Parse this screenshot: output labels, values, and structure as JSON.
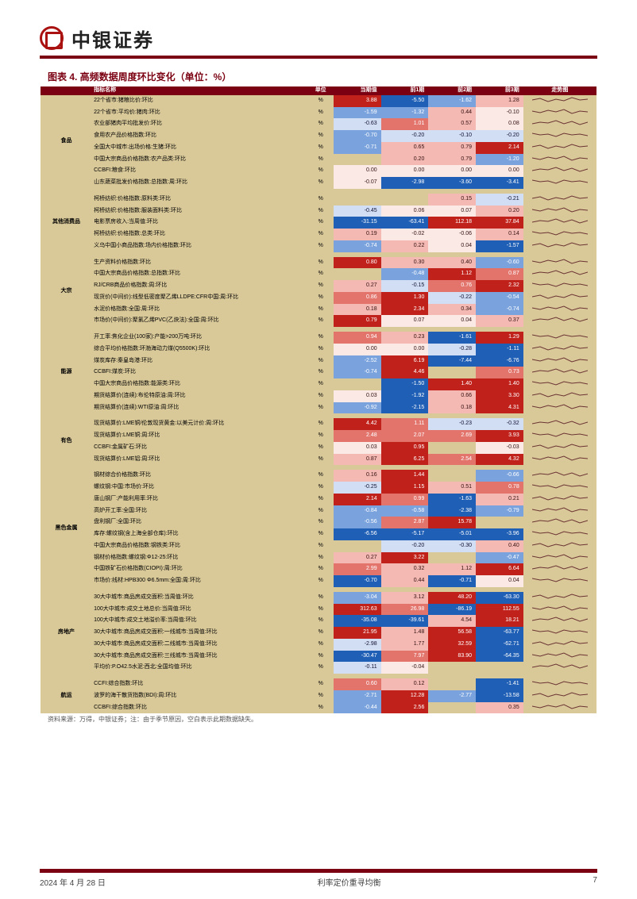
{
  "brand": "中银证券",
  "chart_title": "图表 4. 高频数据周度环比变化（单位：%）",
  "source_note": "资料来源：万得，中银证券；注：由于季节原因，空白表示此期数据缺失。",
  "footer": {
    "date": "2024 年 4 月 28 日",
    "center": "利率定价重寻均衡",
    "page": "7"
  },
  "columns": {
    "name": "指标名称",
    "unit": "单位",
    "v0": "当期值",
    "v1": "前1期",
    "v2": "前2期",
    "v3": "前3期",
    "spark": "走势图"
  },
  "unit_label": "%",
  "color_scale": {
    "neg_deep": "#1f5fb5",
    "neg_mid": "#7aa3de",
    "neg_lt": "#d2def3",
    "neu": "#fbe9e6",
    "pos_lt": "#f5b9b3",
    "pos_mid": "#e2746c",
    "pos_deep": "#c0221b",
    "group_bg": "#d9c999",
    "header_bg": "#7a0012"
  },
  "groups": [
    {
      "cat": "食品",
      "rows": [
        {
          "name": "22个省市:猪粮比价:环比",
          "v": [
            3.88,
            -5.5,
            -1.62,
            1.28
          ],
          "c": [
            "pos-deep",
            "neg-deep",
            "neg-mid",
            "pos-lt"
          ]
        },
        {
          "name": "22个省市:平均价:猪肉:环比",
          "v": [
            -1.59,
            -1.32,
            0.44,
            -0.1
          ],
          "c": [
            "neg-mid",
            "neg-mid",
            "pos-lt",
            "neu"
          ]
        },
        {
          "name": "农业部猪肉平均批发价:环比",
          "v": [
            -0.63,
            1.01,
            0.57,
            0.08
          ],
          "c": [
            "neg-lt",
            "pos-mid",
            "pos-lt",
            "neu"
          ]
        },
        {
          "name": "食用农产品价格指数:环比",
          "v": [
            -0.7,
            -0.2,
            -0.1,
            -0.2
          ],
          "c": [
            "neg-mid",
            "neg-lt",
            "neg-lt",
            "neg-lt"
          ]
        },
        {
          "name": "全国大中城市:出场价格:生猪:环比",
          "v": [
            -0.71,
            0.65,
            0.79,
            2.14
          ],
          "c": [
            "neg-mid",
            "pos-lt",
            "pos-lt",
            "pos-deep"
          ]
        },
        {
          "name": "中国大宗商品价格指数:农产品类:环比",
          "v": [
            null,
            0.2,
            0.79,
            -1.2
          ],
          "c": [
            "blank",
            "pos-lt",
            "pos-lt",
            "neg-mid"
          ]
        },
        {
          "name": "CCBFI:粮食:环比",
          "v": [
            0.0,
            0.0,
            0.0,
            0.0
          ],
          "c": [
            "neu",
            "neu",
            "neu",
            "neu"
          ]
        },
        {
          "name": "山东蔬菜批发价格指数:总指数:周:环比",
          "v": [
            -0.07,
            -2.98,
            -3.6,
            -3.41
          ],
          "c": [
            "neu",
            "neg-deep",
            "neg-deep",
            "neg-deep"
          ]
        }
      ]
    },
    {
      "cat": "其他消费品",
      "rows": [
        {
          "name": "柯桥纺织:价格指数:原料类:环比",
          "v": [
            null,
            null,
            0.15,
            -0.21
          ],
          "c": [
            "blank",
            "blank",
            "pos-lt",
            "neg-lt"
          ]
        },
        {
          "name": "柯桥纺织:价格指数:服装面料类:环比",
          "v": [
            -0.45,
            0.06,
            0.07,
            0.2
          ],
          "c": [
            "neg-lt",
            "neu",
            "neu",
            "pos-lt"
          ]
        },
        {
          "name": "电影票房收入:当周值:环比",
          "v": [
            -31.15,
            -63.41,
            112.18,
            37.84
          ],
          "c": [
            "neg-deep",
            "neg-deep",
            "pos-deep",
            "pos-deep"
          ]
        },
        {
          "name": "柯桥纺织:价格指数:总类:环比",
          "v": [
            0.19,
            -0.02,
            -0.06,
            0.14
          ],
          "c": [
            "pos-lt",
            "neu",
            "neu",
            "pos-lt"
          ]
        },
        {
          "name": "义乌中国小商品指数:场内价格指数:环比",
          "v": [
            -0.74,
            0.22,
            0.04,
            -1.57
          ],
          "c": [
            "neg-mid",
            "pos-lt",
            "neu",
            "neg-deep"
          ]
        }
      ]
    },
    {
      "cat": "大宗",
      "rows": [
        {
          "name": "生产资料价格指数:环比",
          "v": [
            0.8,
            0.3,
            0.4,
            -0.6
          ],
          "c": [
            "pos-deep",
            "pos-lt",
            "pos-lt",
            "neg-mid"
          ]
        },
        {
          "name": "中国大宗商品价格指数:总指数:环比",
          "v": [
            null,
            -0.48,
            1.12,
            0.87
          ],
          "c": [
            "blank",
            "neg-mid",
            "pos-deep",
            "pos-mid"
          ]
        },
        {
          "name": "RJ/CRB商品价格指数:周:环比",
          "v": [
            0.27,
            -0.15,
            0.76,
            2.32
          ],
          "c": [
            "pos-lt",
            "neg-lt",
            "pos-mid",
            "pos-deep"
          ]
        },
        {
          "name": "现货价(中间价):线型低密度聚乙烯LLDPE:CFR中国:周:环比",
          "v": [
            0.86,
            1.3,
            -0.22,
            -0.54
          ],
          "c": [
            "pos-mid",
            "pos-deep",
            "neg-lt",
            "neg-mid"
          ]
        },
        {
          "name": "水泥价格指数:全国:周:环比",
          "v": [
            0.18,
            2.34,
            0.34,
            -0.74
          ],
          "c": [
            "pos-lt",
            "pos-deep",
            "pos-lt",
            "neg-mid"
          ]
        },
        {
          "name": "市场价(中间价):聚氯乙烯PVC(乙炔法):全国:周:环比",
          "v": [
            0.79,
            0.07,
            0.04,
            0.37
          ],
          "c": [
            "pos-deep",
            "neu",
            "neu",
            "pos-lt"
          ]
        }
      ]
    },
    {
      "cat": "能源",
      "rows": [
        {
          "name": "开工率:焦化企业(100家):产能>200万吨:环比",
          "v": [
            0.94,
            0.23,
            -1.61,
            1.29
          ],
          "c": [
            "pos-mid",
            "pos-lt",
            "neg-deep",
            "pos-deep"
          ]
        },
        {
          "name": "综合平均价格指数:环渤海动力煤(Q5500K):环比",
          "v": [
            0.0,
            0.0,
            -0.28,
            -1.11
          ],
          "c": [
            "neu",
            "neu",
            "neg-lt",
            "neg-deep"
          ]
        },
        {
          "name": "煤炭库存:秦皇岛港:环比",
          "v": [
            -2.52,
            6.19,
            -7.44,
            -6.76
          ],
          "c": [
            "neg-mid",
            "pos-deep",
            "neg-deep",
            "neg-deep"
          ]
        },
        {
          "name": "CCBFI:煤炭:环比",
          "v": [
            -0.74,
            4.46,
            null,
            0.73
          ],
          "c": [
            "neg-mid",
            "pos-deep",
            "blank",
            "pos-mid"
          ]
        },
        {
          "name": "中国大宗商品价格指数:能源类:环比",
          "v": [
            null,
            -1.5,
            1.4,
            1.4
          ],
          "c": [
            "blank",
            "neg-deep",
            "pos-deep",
            "pos-deep"
          ]
        },
        {
          "name": "期货结算价(连续):布伦特原油:周:环比",
          "v": [
            0.03,
            -1.92,
            0.66,
            3.3
          ],
          "c": [
            "neu",
            "neg-deep",
            "pos-lt",
            "pos-deep"
          ]
        },
        {
          "name": "期货结算价(连续):WTI原油:周:环比",
          "v": [
            -0.92,
            -2.15,
            0.18,
            4.31
          ],
          "c": [
            "neg-mid",
            "neg-deep",
            "pos-lt",
            "pos-deep"
          ]
        }
      ]
    },
    {
      "cat": "有色",
      "rows": [
        {
          "name": "现货结算价:LME铜/伦敦现货黄金:以美元计价:周:环比",
          "v": [
            4.42,
            1.11,
            -0.23,
            -0.32
          ],
          "c": [
            "pos-deep",
            "pos-mid",
            "neg-lt",
            "neg-lt"
          ]
        },
        {
          "name": "现货结算价:LME铜:周:环比",
          "v": [
            2.48,
            2.07,
            2.69,
            3.93
          ],
          "c": [
            "pos-mid",
            "pos-mid",
            "pos-mid",
            "pos-deep"
          ]
        },
        {
          "name": "CCBFI:金属矿石:环比",
          "v": [
            0.03,
            0.95,
            null,
            -0.03
          ],
          "c": [
            "neu",
            "pos-deep",
            "blank",
            "neu"
          ]
        },
        {
          "name": "现货结算价:LME铝:周:环比",
          "v": [
            0.87,
            6.25,
            2.54,
            4.32
          ],
          "c": [
            "pos-lt",
            "pos-deep",
            "pos-mid",
            "pos-deep"
          ]
        }
      ]
    },
    {
      "cat": "黑色金属",
      "rows": [
        {
          "name": "钢材综合价格指数:环比",
          "v": [
            0.16,
            1.44,
            null,
            -0.66
          ],
          "c": [
            "pos-lt",
            "pos-deep",
            "blank",
            "neg-mid"
          ]
        },
        {
          "name": "螺纹钢:中国:市场价:环比",
          "v": [
            -0.25,
            1.15,
            0.51,
            0.78
          ],
          "c": [
            "neg-lt",
            "pos-deep",
            "pos-lt",
            "pos-mid"
          ]
        },
        {
          "name": "唐山钢厂:产能利用率:环比",
          "v": [
            2.14,
            0.99,
            -1.63,
            0.21
          ],
          "c": [
            "pos-deep",
            "pos-mid",
            "neg-deep",
            "pos-lt"
          ]
        },
        {
          "name": "高炉开工率:全国:环比",
          "v": [
            -0.84,
            -0.58,
            -2.38,
            -0.79
          ],
          "c": [
            "neg-mid",
            "neg-mid",
            "neg-deep",
            "neg-mid"
          ]
        },
        {
          "name": "盘利钢厂:全国:环比",
          "v": [
            -0.56,
            2.87,
            15.78,
            null
          ],
          "c": [
            "neg-mid",
            "pos-mid",
            "pos-deep",
            "blank"
          ]
        },
        {
          "name": "库存:螺纹钢(含上海全部仓库):环比",
          "v": [
            -6.56,
            -5.17,
            -5.01,
            -3.96
          ],
          "c": [
            "neg-deep",
            "neg-deep",
            "neg-deep",
            "neg-deep"
          ]
        },
        {
          "name": "中国大宗商品价格指数:钢铁类:环比",
          "v": [
            null,
            -0.2,
            -0.3,
            0.4
          ],
          "c": [
            "blank",
            "neg-lt",
            "neg-lt",
            "pos-lt"
          ]
        },
        {
          "name": "钢材价格指数:螺纹钢:Φ12-25:环比",
          "v": [
            0.27,
            3.22,
            null,
            -0.47
          ],
          "c": [
            "pos-lt",
            "pos-deep",
            "blank",
            "neg-mid"
          ]
        },
        {
          "name": "中国铁矿石价格指数(CIOPI):周:环比",
          "v": [
            2.99,
            0.32,
            1.12,
            6.64
          ],
          "c": [
            "pos-mid",
            "pos-lt",
            "pos-lt",
            "pos-deep"
          ]
        },
        {
          "name": "市场价:线材:HPB300 Φ6.5mm:全国:周:环比",
          "v": [
            -0.7,
            0.44,
            -0.71,
            0.04
          ],
          "c": [
            "neg-deep",
            "pos-lt",
            "neg-deep",
            "neu"
          ]
        }
      ]
    },
    {
      "cat": "房地产",
      "rows": [
        {
          "name": "30大中城市:商品房成交面积:当周值:环比",
          "v": [
            -3.04,
            3.12,
            48.2,
            -63.3
          ],
          "c": [
            "neg-mid",
            "pos-lt",
            "pos-deep",
            "neg-deep"
          ]
        },
        {
          "name": "100大中城市:成交土地总价:当周值:环比",
          "v": [
            312.63,
            26.98,
            -86.19,
            112.55
          ],
          "c": [
            "pos-deep",
            "pos-mid",
            "neg-deep",
            "pos-deep"
          ]
        },
        {
          "name": "100大中城市:成交土地溢价率:当周值:环比",
          "v": [
            -35.08,
            -39.61,
            4.54,
            18.21
          ],
          "c": [
            "neg-deep",
            "neg-deep",
            "pos-lt",
            "pos-deep"
          ]
        },
        {
          "name": "30大中城市:商品房成交面积:一线城市:当周值:环比",
          "v": [
            21.95,
            1.48,
            56.58,
            -63.77
          ],
          "c": [
            "pos-deep",
            "pos-lt",
            "pos-deep",
            "neg-deep"
          ]
        },
        {
          "name": "30大中城市:商品房成交面积:二线城市:当周值:环比",
          "v": [
            -2.98,
            1.77,
            32.59,
            -62.71
          ],
          "c": [
            "neg-lt",
            "pos-lt",
            "pos-deep",
            "neg-deep"
          ]
        },
        {
          "name": "30大中城市:商品房成交面积:三线城市:当周值:环比",
          "v": [
            -30.47,
            7.97,
            83.9,
            -64.35
          ],
          "c": [
            "neg-deep",
            "pos-mid",
            "pos-deep",
            "neg-deep"
          ]
        },
        {
          "name": "平均价:P.O42.5水泥:西北:全国均值:环比",
          "v": [
            -0.11,
            -0.04,
            null,
            null
          ],
          "c": [
            "neg-lt",
            "neu",
            "blank",
            "blank"
          ]
        }
      ]
    },
    {
      "cat": "航运",
      "rows": [
        {
          "name": "CCFI:综合指数:环比",
          "v": [
            0.6,
            0.12,
            null,
            -1.41
          ],
          "c": [
            "pos-mid",
            "pos-lt",
            "blank",
            "neg-deep"
          ]
        },
        {
          "name": "波罗的海干散货指数(BDI):周:环比",
          "v": [
            -2.71,
            12.28,
            -2.77,
            -13.58
          ],
          "c": [
            "neg-mid",
            "pos-deep",
            "neg-mid",
            "neg-deep"
          ]
        },
        {
          "name": "CCBFI:综合指数:环比",
          "v": [
            -0.44,
            2.56,
            null,
            0.35
          ],
          "c": [
            "neg-mid",
            "pos-deep",
            "blank",
            "pos-lt"
          ]
        }
      ]
    }
  ]
}
